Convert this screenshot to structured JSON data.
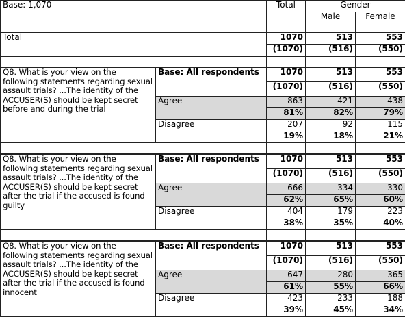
{
  "base": "Base: 1,070",
  "columns": {
    "total": "Total",
    "group": "Gender",
    "sub": [
      "Male",
      "Female"
    ]
  },
  "total_row": {
    "label": "Total",
    "counts": [
      1070,
      513,
      553
    ],
    "weighted": [
      "(1070)",
      "(516)",
      "(550)"
    ]
  },
  "questions": [
    {
      "text": "Q8. What is your view on the following statements regarding sexual assault trials? ...The identity of the ACCUSER(S) should be kept secret before and during the trial",
      "base_label": "Base: All respondents",
      "base_counts": [
        1070,
        513,
        553
      ],
      "base_weighted": [
        "(1070)",
        "(516)",
        "(550)"
      ],
      "rows": [
        {
          "label": "Agree",
          "counts": [
            863,
            421,
            438
          ],
          "percents": [
            "81%",
            "82%",
            "79%"
          ]
        },
        {
          "label": "Disagree",
          "counts": [
            207,
            92,
            115
          ],
          "percents": [
            "19%",
            "18%",
            "21%"
          ]
        }
      ]
    },
    {
      "text": "Q8. What is your view on the following statements regarding sexual assault trials? ...The identity of the ACCUSER(S) should be kept secret after the trial if the accused is found guilty",
      "base_label": "Base: All respondents",
      "base_counts": [
        1070,
        513,
        553
      ],
      "base_weighted": [
        "(1070)",
        "(516)",
        "(550)"
      ],
      "rows": [
        {
          "label": "Agree",
          "counts": [
            666,
            334,
            330
          ],
          "percents": [
            "62%",
            "65%",
            "60%"
          ]
        },
        {
          "label": "Disagree",
          "counts": [
            404,
            179,
            223
          ],
          "percents": [
            "38%",
            "35%",
            "40%"
          ]
        }
      ]
    },
    {
      "text": "Q8. What is your view on the following statements regarding sexual assault trials? ...The identity of the ACCUSER(S) should be kept secret after the trial if the accused is found innocent",
      "base_label": "Base: All respondents",
      "base_counts": [
        1070,
        513,
        553
      ],
      "base_weighted": [
        "(1070)",
        "(516)",
        "(550)"
      ],
      "rows": [
        {
          "label": "Agree",
          "counts": [
            647,
            280,
            365
          ],
          "percents": [
            "61%",
            "55%",
            "66%"
          ]
        },
        {
          "label": "Disagree",
          "counts": [
            423,
            233,
            188
          ],
          "percents": [
            "39%",
            "45%",
            "34%"
          ]
        }
      ]
    }
  ]
}
